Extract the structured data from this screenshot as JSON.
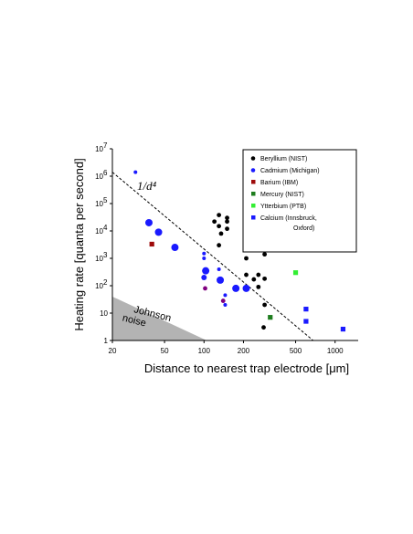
{
  "chart_data": {
    "type": "scatter",
    "xlabel": "Distance to nearest trap electrode [μm]",
    "ylabel": "Heating rate  [quanta per second]",
    "xscale": "log",
    "yscale": "log",
    "xlim": [
      20,
      1500
    ],
    "ylim": [
      1,
      10000000
    ],
    "x_ticks": [
      {
        "value": 20,
        "label": "20"
      },
      {
        "value": 50,
        "label": "50"
      },
      {
        "value": 100,
        "label": "100"
      },
      {
        "value": 200,
        "label": "200"
      },
      {
        "value": 500,
        "label": "500"
      },
      {
        "value": 1000,
        "label": "1000"
      }
    ],
    "y_ticks": [
      {
        "value": 1,
        "base": "1",
        "exp": ""
      },
      {
        "value": 10,
        "base": "10",
        "exp": ""
      },
      {
        "value": 100,
        "base": "10",
        "exp": "2"
      },
      {
        "value": 1000,
        "base": "10",
        "exp": "3"
      },
      {
        "value": 10000,
        "base": "10",
        "exp": "4"
      },
      {
        "value": 100000,
        "base": "10",
        "exp": "5"
      },
      {
        "value": 1000000,
        "base": "10",
        "exp": "6"
      },
      {
        "value": 10000000,
        "base": "10",
        "exp": "7"
      }
    ],
    "legend_position": "top-right",
    "series": [
      {
        "name": "Beryllium (NIST)",
        "color": "#000000",
        "marker": "circle",
        "points": [
          {
            "x": 130,
            "y": 38000
          },
          {
            "x": 120,
            "y": 22000
          },
          {
            "x": 130,
            "y": 15000
          },
          {
            "x": 150,
            "y": 30000
          },
          {
            "x": 150,
            "y": 22000
          },
          {
            "x": 135,
            "y": 8000
          },
          {
            "x": 150,
            "y": 12000
          },
          {
            "x": 130,
            "y": 3000
          },
          {
            "x": 210,
            "y": 12000
          },
          {
            "x": 210,
            "y": 9000
          },
          {
            "x": 210,
            "y": 3000
          },
          {
            "x": 210,
            "y": 1000
          },
          {
            "x": 290,
            "y": 1400
          },
          {
            "x": 210,
            "y": 250
          },
          {
            "x": 260,
            "y": 250
          },
          {
            "x": 290,
            "y": 180
          },
          {
            "x": 240,
            "y": 170
          },
          {
            "x": 260,
            "y": 90
          },
          {
            "x": 290,
            "y": 20
          },
          {
            "x": 285,
            "y": 3
          }
        ]
      },
      {
        "name": "Cadmium (Michigan)",
        "color": "#1a1aff",
        "marker": "circle",
        "points": [
          {
            "x": 30,
            "y": 1400000
          },
          {
            "x": 38,
            "y": 20000
          },
          {
            "x": 45,
            "y": 9000
          },
          {
            "x": 60,
            "y": 2500
          },
          {
            "x": 100,
            "y": 1500
          },
          {
            "x": 100,
            "y": 1000
          },
          {
            "x": 103,
            "y": 350
          },
          {
            "x": 100,
            "y": 200
          },
          {
            "x": 130,
            "y": 400
          },
          {
            "x": 133,
            "y": 160
          },
          {
            "x": 145,
            "y": 45
          },
          {
            "x": 145,
            "y": 20
          },
          {
            "x": 175,
            "y": 80
          },
          {
            "x": 210,
            "y": 80
          }
        ],
        "sizes": [
          2,
          4,
          4,
          4,
          2,
          2,
          4,
          3,
          2,
          4,
          2,
          2,
          4,
          4
        ]
      },
      {
        "name": "Barium (IBM)",
        "color": "#9e0b0b",
        "marker": "square",
        "points": [
          {
            "x": 40,
            "y": 3300
          }
        ]
      },
      {
        "name": "Mercury (NIST)",
        "color": "#1e7d1e",
        "marker": "square",
        "points": [
          {
            "x": 320,
            "y": 7
          }
        ]
      },
      {
        "name": "Ytterbium (PTB)",
        "color": "#33ee33",
        "marker": "square",
        "points": [
          {
            "x": 500,
            "y": 300
          }
        ]
      },
      {
        "name": "Calcium (Innsbruck,\nOxford)",
        "color": "#1a1aff",
        "marker": "square",
        "points": [
          {
            "x": 600,
            "y": 14
          },
          {
            "x": 600,
            "y": 5
          },
          {
            "x": 1150,
            "y": 2.6
          }
        ]
      },
      {
        "name": "",
        "color": "#800080",
        "marker": "circle",
        "points": [
          {
            "x": 102,
            "y": 80
          },
          {
            "x": 140,
            "y": 28
          }
        ]
      }
    ],
    "trend_line": {
      "label": "1/d⁴",
      "from": {
        "x": 20,
        "y": 1400000
      },
      "to": {
        "x": 680,
        "y": 1
      }
    },
    "shaded_region": {
      "label": "Johnson\nnoise",
      "color": "#b3b3b3",
      "polygon": [
        {
          "x": 20,
          "y": 40
        },
        {
          "x": 20,
          "y": 1
        },
        {
          "x": 105,
          "y": 1
        }
      ]
    }
  }
}
